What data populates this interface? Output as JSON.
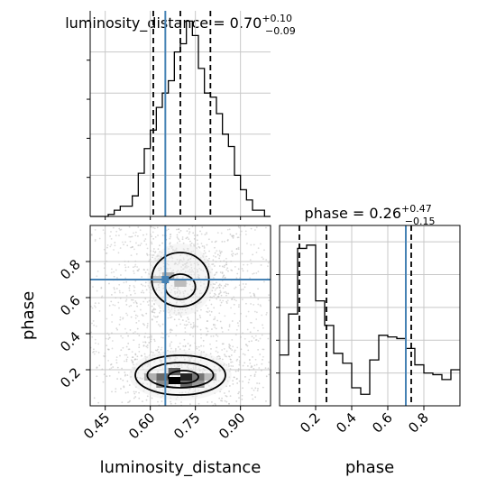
{
  "chart_data": [
    {
      "type": "histogram",
      "panel": "luminosity_distance marginal",
      "title": {
        "prefix": "luminosity_distance = 0.70",
        "upper": "+0.10",
        "lower": "−0.09"
      },
      "xlim": [
        0.4,
        1.0
      ],
      "bins": [
        0.4,
        0.42,
        0.44,
        0.46,
        0.48,
        0.5,
        0.52,
        0.54,
        0.56,
        0.58,
        0.6,
        0.62,
        0.64,
        0.66,
        0.68,
        0.7,
        0.72,
        0.74,
        0.76,
        0.78,
        0.8,
        0.82,
        0.84,
        0.86,
        0.88,
        0.9,
        0.92,
        0.94,
        0.96,
        0.98,
        1.0
      ],
      "counts": [
        0,
        0,
        0,
        1,
        3,
        5,
        5,
        10,
        21,
        33,
        42,
        53,
        60,
        66,
        80,
        84,
        95,
        88,
        72,
        60,
        58,
        50,
        40,
        34,
        20,
        13,
        8,
        3,
        3,
        0
      ],
      "ylim": [
        0,
        100
      ],
      "quantiles": [
        0.61,
        0.7,
        0.8
      ],
      "truth": 0.65,
      "grid": true
    },
    {
      "type": "histogram",
      "panel": "phase marginal",
      "title": {
        "prefix": "phase = 0.26",
        "upper": "+0.47",
        "lower": "−0.15"
      },
      "xlim": [
        0.0,
        1.0
      ],
      "xticks": [
        0.2,
        0.4,
        0.6,
        0.8
      ],
      "xticklabels": [
        "0.2",
        "0.4",
        "0.6",
        "0.8"
      ],
      "xlabel": "phase",
      "bins": [
        0.0,
        0.05,
        0.1,
        0.15,
        0.2,
        0.25,
        0.3,
        0.35,
        0.4,
        0.45,
        0.5,
        0.55,
        0.6,
        0.65,
        0.7,
        0.75,
        0.8,
        0.85,
        0.9,
        0.95,
        1.0
      ],
      "counts": [
        31,
        56,
        96,
        98,
        64,
        49,
        32,
        26,
        11,
        7,
        28,
        43,
        42,
        41,
        35,
        25,
        20,
        19,
        16,
        22
      ],
      "ylim": [
        0,
        110
      ],
      "quantiles": [
        0.11,
        0.26,
        0.73
      ],
      "truth": 0.7,
      "grid": true
    },
    {
      "type": "scatter",
      "panel": "joint 2D density",
      "xlabel": "luminosity_distance",
      "ylabel": "phase",
      "xlim": [
        0.4,
        1.0
      ],
      "ylim": [
        0.0,
        1.0
      ],
      "xticks": [
        0.45,
        0.6,
        0.75,
        0.9
      ],
      "xticklabels": [
        "0.45",
        "0.60",
        "0.75",
        "0.90"
      ],
      "yticks": [
        0.2,
        0.4,
        0.6,
        0.8
      ],
      "yticklabels": [
        "0.2",
        "0.4",
        "0.6",
        "0.8"
      ],
      "clusters": [
        {
          "cx": 0.71,
          "cy": 0.71,
          "sx": 0.085,
          "sy": 0.12
        },
        {
          "cx": 0.7,
          "cy": 0.17,
          "sx": 0.11,
          "sy": 0.08
        }
      ],
      "density_cells": [
        {
          "x": 0.68,
          "y": 0.14,
          "level": 1.0
        },
        {
          "x": 0.72,
          "y": 0.16,
          "level": 0.85
        },
        {
          "x": 0.64,
          "y": 0.16,
          "level": 0.55
        },
        {
          "x": 0.76,
          "y": 0.16,
          "level": 0.5
        },
        {
          "x": 0.68,
          "y": 0.19,
          "level": 0.6
        },
        {
          "x": 0.72,
          "y": 0.12,
          "level": 0.55
        },
        {
          "x": 0.64,
          "y": 0.12,
          "level": 0.4
        },
        {
          "x": 0.76,
          "y": 0.12,
          "level": 0.35
        },
        {
          "x": 0.6,
          "y": 0.16,
          "level": 0.25
        },
        {
          "x": 0.8,
          "y": 0.16,
          "level": 0.2
        },
        {
          "x": 0.66,
          "y": 0.72,
          "level": 0.25
        },
        {
          "x": 0.7,
          "y": 0.68,
          "level": 0.2
        },
        {
          "x": 0.62,
          "y": 0.7,
          "level": 0.15
        }
      ],
      "contours": [
        {
          "cx": 0.7,
          "cy": 0.7,
          "rx": 0.095,
          "ry": 0.15
        },
        {
          "cx": 0.7,
          "cy": 0.66,
          "rx": 0.05,
          "ry": 0.07
        },
        {
          "cx": 0.7,
          "cy": 0.17,
          "rx": 0.15,
          "ry": 0.11
        },
        {
          "cx": 0.7,
          "cy": 0.17,
          "rx": 0.11,
          "ry": 0.07
        },
        {
          "cx": 0.71,
          "cy": 0.16,
          "rx": 0.05,
          "ry": 0.035
        }
      ],
      "truth": {
        "x": 0.65,
        "y": 0.7
      },
      "grid": true
    }
  ],
  "colors": {
    "truth": "#4682b4",
    "hist": "#000000",
    "grid": "#c8c8c8",
    "points": "#bbbbbb"
  }
}
